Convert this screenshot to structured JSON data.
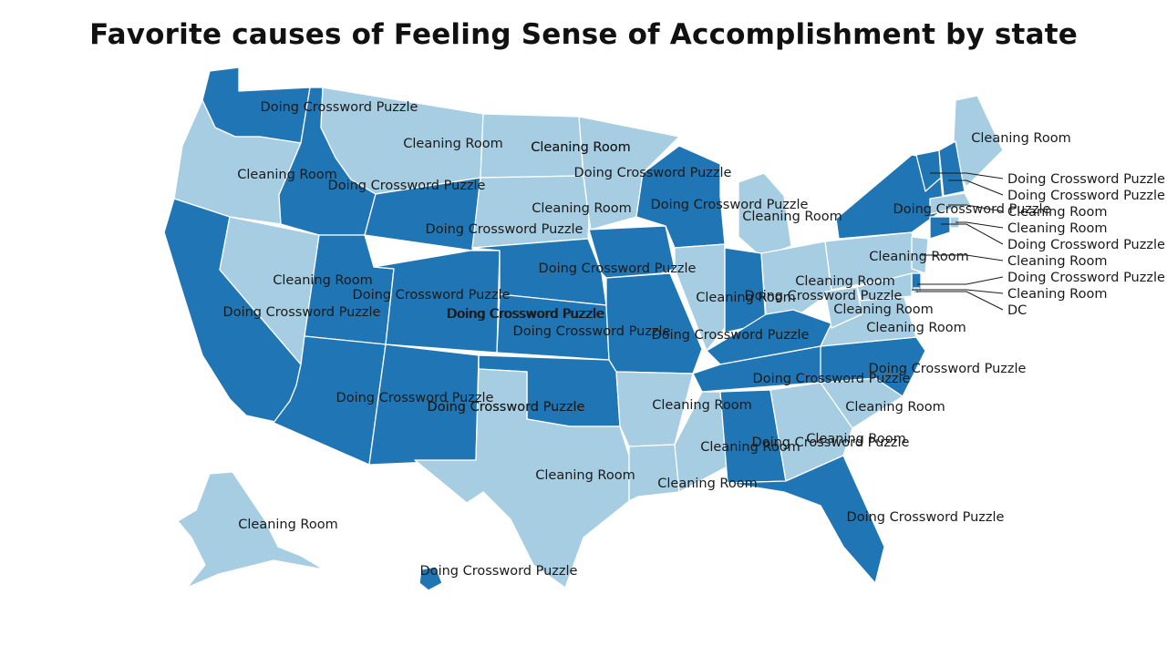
{
  "title": "Favorite causes of Feeling Sense of Accomplishment by state",
  "legend_colors": {
    "Doing Crossword Puzzle": "#2076b4",
    "Cleaning Room": "#a6cde2"
  },
  "states": [
    {
      "id": "WA",
      "label": "Doing Crossword Puzzle"
    },
    {
      "id": "OR",
      "label": "Cleaning Room"
    },
    {
      "id": "CA",
      "label": "Doing Crossword Puzzle"
    },
    {
      "id": "NV",
      "label": "Cleaning Room"
    },
    {
      "id": "ID",
      "label": "Doing Crossword Puzzle"
    },
    {
      "id": "MT",
      "label": "Cleaning Room"
    },
    {
      "id": "WY",
      "label": "Doing Crossword Puzzle"
    },
    {
      "id": "UT",
      "label": "Doing Crossword Puzzle"
    },
    {
      "id": "AZ",
      "label": "Doing Crossword Puzzle"
    },
    {
      "id": "CO",
      "label": "Doing Crossword Puzzle"
    },
    {
      "id": "NM",
      "label": "Doing Crossword Puzzle"
    },
    {
      "id": "ND",
      "label": "Cleaning Room"
    },
    {
      "id": "SD",
      "label": "Cleaning Room"
    },
    {
      "id": "NE",
      "label": "Doing Crossword Puzzle"
    },
    {
      "id": "KS",
      "label": "Doing Crossword Puzzle"
    },
    {
      "id": "OK",
      "label": "Doing Crossword Puzzle"
    },
    {
      "id": "TX",
      "label": "Cleaning Room"
    },
    {
      "id": "MN",
      "label": "Cleaning Room"
    },
    {
      "id": "IA",
      "label": "Doing Crossword Puzzle"
    },
    {
      "id": "MO",
      "label": "Doing Crossword Puzzle"
    },
    {
      "id": "AR",
      "label": "Cleaning Room"
    },
    {
      "id": "LA",
      "label": "Cleaning Room"
    },
    {
      "id": "WI",
      "label": "Doing Crossword Puzzle"
    },
    {
      "id": "IL",
      "label": "Cleaning Room"
    },
    {
      "id": "MI",
      "label": "Cleaning Room"
    },
    {
      "id": "IN",
      "label": "Doing Crossword Puzzle"
    },
    {
      "id": "OH",
      "label": "Cleaning Room"
    },
    {
      "id": "KY",
      "label": "Doing Crossword Puzzle"
    },
    {
      "id": "TN",
      "label": "Doing Crossword Puzzle"
    },
    {
      "id": "MS",
      "label": "Cleaning Room"
    },
    {
      "id": "AL",
      "label": "Doing Crossword Puzzle"
    },
    {
      "id": "GA",
      "label": "Cleaning Room"
    },
    {
      "id": "FL",
      "label": "Doing Crossword Puzzle"
    },
    {
      "id": "SC",
      "label": "Cleaning Room"
    },
    {
      "id": "NC",
      "label": "Doing Crossword Puzzle"
    },
    {
      "id": "VA",
      "label": "Cleaning Room"
    },
    {
      "id": "WV",
      "label": "Cleaning Room"
    },
    {
      "id": "PA",
      "label": "Cleaning Room"
    },
    {
      "id": "NY",
      "label": "Doing Crossword Puzzle"
    },
    {
      "id": "ME",
      "label": "Cleaning Room"
    },
    {
      "id": "AK",
      "label": "Cleaning Room"
    },
    {
      "id": "HI",
      "label": "Doing Crossword Puzzle"
    },
    {
      "id": "VT",
      "label": "Doing Crossword Puzzle"
    },
    {
      "id": "NH",
      "label": "Doing Crossword Puzzle"
    },
    {
      "id": "MA",
      "label": "Cleaning Room"
    },
    {
      "id": "RI",
      "label": "Cleaning Room"
    },
    {
      "id": "CT",
      "label": "Doing Crossword Puzzle"
    },
    {
      "id": "NJ",
      "label": "Cleaning Room"
    },
    {
      "id": "DE",
      "label": "Doing Crossword Puzzle"
    },
    {
      "id": "MD",
      "label": "Cleaning Room"
    },
    {
      "id": "DC",
      "label": "DC"
    }
  ]
}
